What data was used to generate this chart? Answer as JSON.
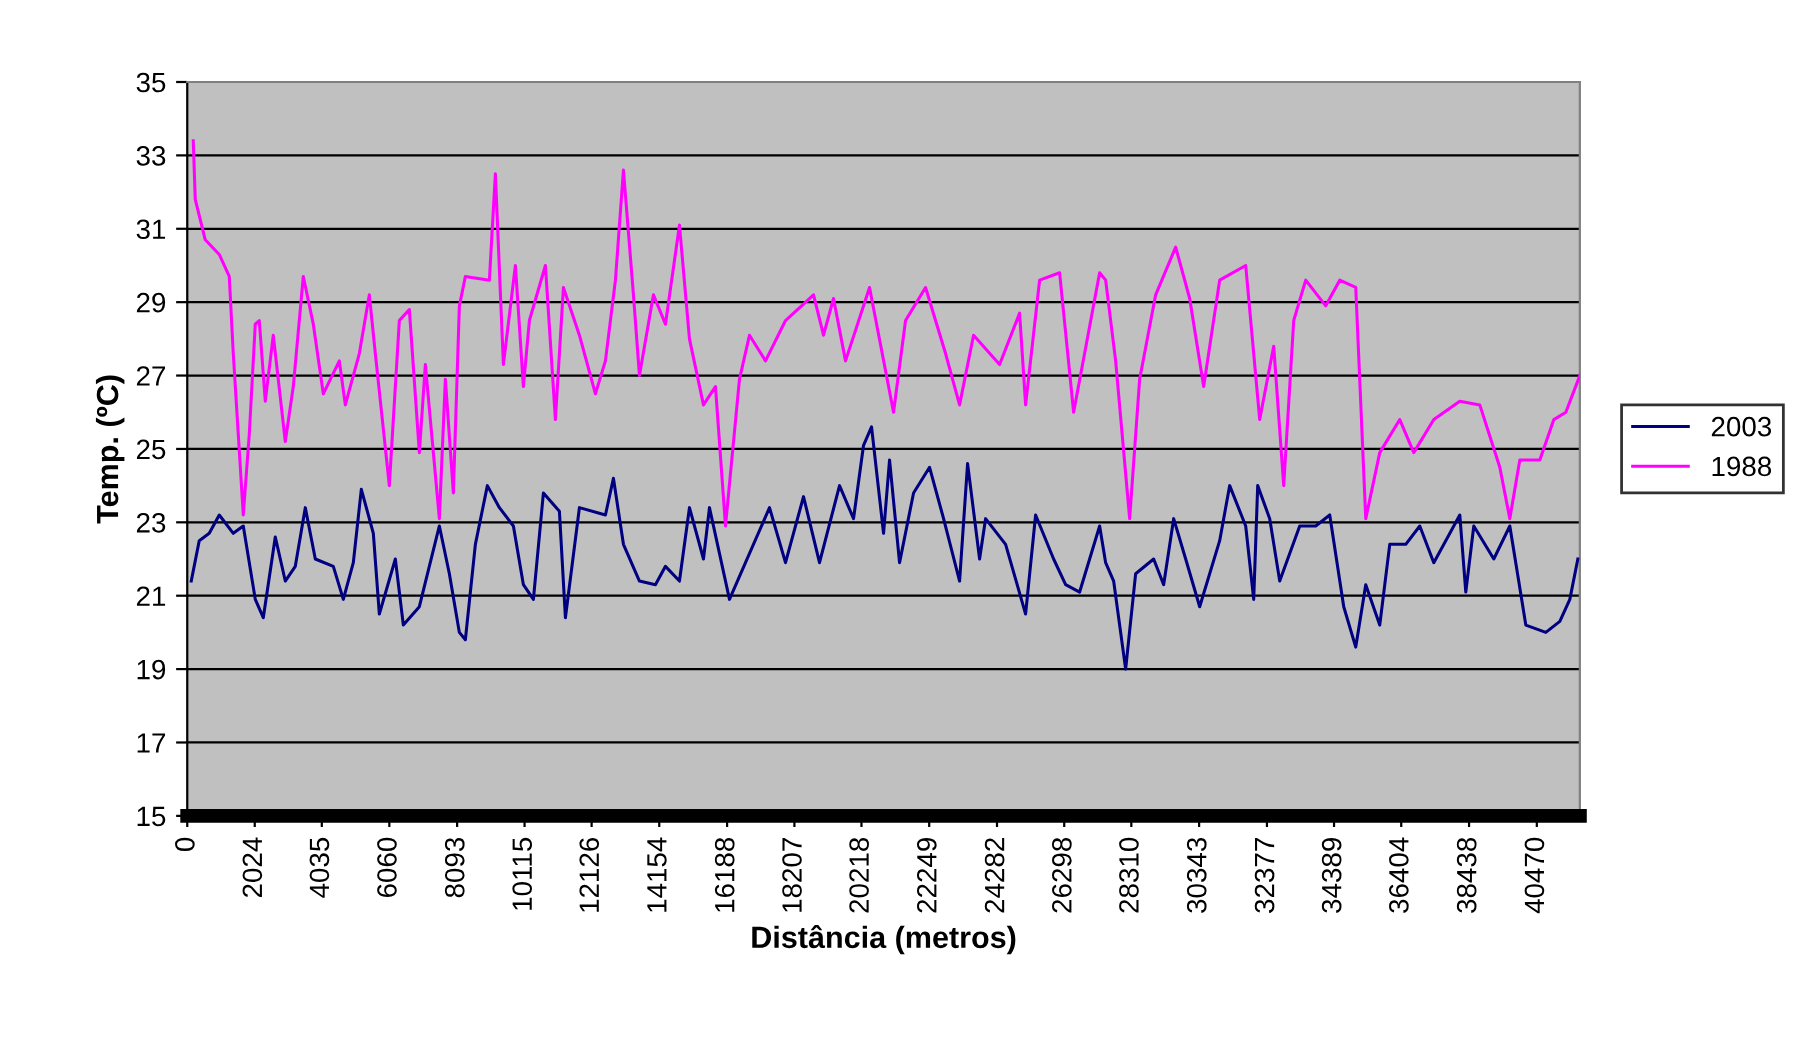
{
  "chart_data": {
    "type": "line",
    "xlabel": "Distância (metros)",
    "ylabel": "Temp. (ºC)",
    "xlim": [
      0,
      41760
    ],
    "ylim": [
      15,
      35
    ],
    "xticks": [
      0,
      2024,
      4035,
      6060,
      8093,
      10115,
      12126,
      14154,
      16188,
      18207,
      20218,
      22249,
      24282,
      26298,
      28310,
      30343,
      32377,
      34389,
      36404,
      38438,
      40470
    ],
    "yticks": [
      15,
      17,
      19,
      21,
      23,
      25,
      27,
      29,
      31,
      33,
      35
    ],
    "grid": "y",
    "legend": "right",
    "marker": "none",
    "line_style": "solid",
    "series": [
      {
        "name": "2003",
        "color": "#000080",
        "x": [
          120,
          360,
          660,
          960,
          1380,
          1680,
          2040,
          2280,
          2640,
          2940,
          3240,
          3540,
          3840,
          4380,
          4680,
          4980,
          5220,
          5580,
          5760,
          6240,
          6480,
          6960,
          7560,
          7860,
          8160,
          8340,
          8640,
          9000,
          9360,
          9780,
          10080,
          10380,
          10680,
          11160,
          11340,
          11760,
          12540,
          12780,
          13080,
          13560,
          14040,
          14340,
          14760,
          15060,
          15480,
          15660,
          16260,
          16740,
          17460,
          17940,
          18480,
          18960,
          19560,
          19980,
          20280,
          20520,
          20880,
          21060,
          21360,
          21780,
          22260,
          22680,
          23160,
          23400,
          23760,
          23940,
          24540,
          25140,
          25440,
          25980,
          26340,
          26760,
          27360,
          27540,
          27780,
          28140,
          28440,
          28980,
          29280,
          29580,
          29940,
          30360,
          30960,
          31260,
          31740,
          31980,
          32100,
          32460,
          32760,
          33360,
          33840,
          34260,
          34680,
          35040,
          35340,
          35760,
          36060,
          36540,
          36960,
          37380,
          38160,
          38340,
          38580,
          39180,
          39660,
          40140,
          40740,
          41160,
          41460,
          41700
        ],
        "values": [
          21.4,
          22.5,
          22.7,
          23.2,
          22.7,
          22.9,
          20.9,
          20.4,
          22.6,
          21.4,
          21.8,
          23.4,
          22.0,
          21.8,
          20.9,
          21.9,
          23.9,
          22.7,
          20.5,
          22.0,
          20.2,
          20.7,
          22.9,
          21.6,
          20.0,
          19.8,
          22.4,
          24.0,
          23.4,
          22.9,
          21.3,
          20.9,
          23.8,
          23.3,
          20.4,
          23.4,
          23.2,
          24.2,
          22.4,
          21.4,
          21.3,
          21.8,
          21.4,
          23.4,
          22.0,
          23.4,
          20.9,
          21.9,
          23.4,
          21.9,
          23.7,
          21.9,
          24.0,
          23.1,
          25.1,
          25.6,
          22.7,
          24.7,
          21.9,
          23.8,
          24.5,
          23.1,
          21.4,
          24.6,
          22.0,
          23.1,
          22.4,
          20.5,
          23.2,
          22.0,
          21.3,
          21.1,
          22.9,
          21.9,
          21.4,
          19.0,
          21.6,
          22.0,
          21.3,
          23.1,
          22.0,
          20.7,
          22.5,
          24.0,
          22.9,
          20.9,
          24.0,
          23.1,
          21.4,
          22.9,
          22.9,
          23.2,
          20.7,
          19.6,
          21.3,
          20.2,
          22.4,
          22.4,
          22.9,
          21.9,
          23.2,
          21.1,
          22.9,
          22.0,
          22.9,
          20.2,
          20.0,
          20.3,
          20.9,
          22.0
        ]
      },
      {
        "name": "1988",
        "color": "#ff00ff",
        "x": [
          180,
          240,
          540,
          960,
          1260,
          1380,
          1680,
          1860,
          2040,
          2160,
          2340,
          2580,
          2940,
          3180,
          3480,
          3780,
          4080,
          4560,
          4740,
          5160,
          5460,
          5640,
          6060,
          6360,
          6660,
          6960,
          7140,
          7560,
          7740,
          7980,
          8160,
          8340,
          9060,
          9240,
          9480,
          9840,
          10080,
          10260,
          10740,
          11040,
          11280,
          11760,
          12240,
          12540,
          12840,
          13080,
          13380,
          13560,
          13980,
          14340,
          14760,
          15060,
          15480,
          15840,
          16140,
          16560,
          16860,
          17340,
          17940,
          18780,
          19080,
          19380,
          19740,
          20460,
          21180,
          21540,
          22140,
          22740,
          23160,
          23580,
          24360,
          24960,
          25140,
          25560,
          26160,
          26580,
          27360,
          27540,
          27840,
          28260,
          28560,
          29040,
          29640,
          30060,
          30480,
          30960,
          31740,
          32160,
          32580,
          32880,
          33180,
          33540,
          34140,
          34560,
          35040,
          35340,
          35760,
          36360,
          36780,
          37380,
          38160,
          38760,
          39360,
          39660,
          39960,
          40560,
          40980,
          41340,
          41760
        ],
        "values": [
          33.4,
          31.8,
          30.7,
          30.3,
          29.7,
          27.6,
          23.2,
          25.4,
          28.4,
          28.5,
          26.3,
          28.1,
          25.2,
          26.7,
          29.7,
          28.4,
          26.5,
          27.4,
          26.2,
          27.6,
          29.2,
          27.6,
          24.0,
          28.5,
          28.8,
          24.9,
          27.3,
          23.1,
          26.9,
          23.8,
          28.9,
          29.7,
          29.6,
          32.5,
          27.3,
          30.0,
          26.7,
          28.5,
          30.0,
          25.8,
          29.4,
          28.1,
          26.5,
          27.4,
          29.6,
          32.6,
          29.2,
          27.0,
          29.2,
          28.4,
          31.1,
          28.0,
          26.2,
          26.7,
          22.9,
          26.9,
          28.1,
          27.4,
          28.5,
          29.2,
          28.1,
          29.1,
          27.4,
          29.4,
          26.0,
          28.5,
          29.4,
          27.6,
          26.2,
          28.1,
          27.3,
          28.7,
          26.2,
          29.6,
          29.8,
          26.0,
          29.8,
          29.6,
          27.4,
          23.1,
          26.9,
          29.2,
          30.5,
          29.1,
          26.7,
          29.6,
          30.0,
          25.8,
          27.8,
          24.0,
          28.5,
          29.6,
          28.9,
          29.6,
          29.4,
          23.1,
          24.9,
          25.8,
          24.9,
          25.8,
          26.3,
          26.2,
          24.5,
          23.1,
          24.7,
          24.7,
          25.8,
          26.0,
          27.0
        ]
      }
    ]
  }
}
